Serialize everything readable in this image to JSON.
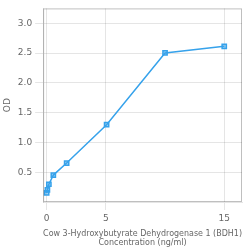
{
  "chart_data": {
    "type": "line",
    "x": [
      0,
      0.063,
      0.188,
      0.563,
      1.688,
      5.063,
      10.0,
      15.0
    ],
    "values": [
      0.154,
      0.205,
      0.298,
      0.452,
      0.654,
      1.298,
      2.502,
      2.613
    ],
    "xlabel": [
      "Cow 3-Hydroxybutyrate Dehydrogenase 1 (BDH1)",
      "Concentration (ng/ml)"
    ],
    "ylabel": "OD",
    "xlim": [
      -0.3,
      16.5
    ],
    "ylim": [
      0,
      3.25
    ],
    "xticks": [
      0,
      5,
      15
    ],
    "yticks": [
      0.5,
      {
        "value": 1.0,
        "label": "1.0"
      },
      1.5,
      {
        "value": 2.0,
        "label": "2.0"
      },
      2.5,
      {
        "value": 3.0,
        "label": "3.0"
      }
    ],
    "marker": "square",
    "grid": true
  }
}
